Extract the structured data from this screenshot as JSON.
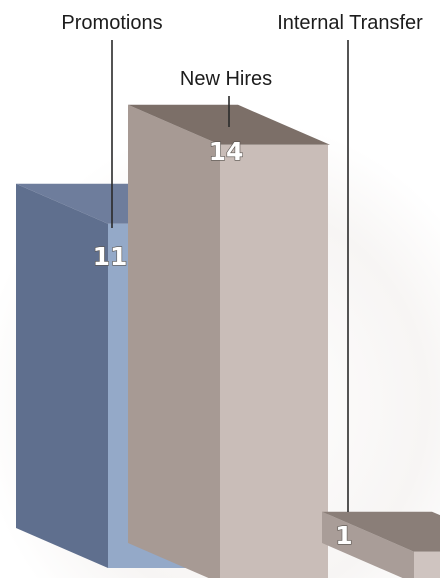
{
  "chart_data": {
    "type": "bar",
    "style": "3d",
    "categories": [
      "Promotions",
      "New Hires",
      "Internal Transfer"
    ],
    "values": [
      11,
      14,
      1
    ],
    "data_labels": [
      "11",
      "14",
      "1"
    ],
    "grid": false,
    "legend": "none",
    "colors": {
      "Promotions": {
        "top": "#6e7d9c",
        "front": "#94a9c8",
        "side": "#5f6f8e"
      },
      "New Hires": {
        "top": "#7c6f68",
        "front": "#c9bdb8",
        "side": "#a79a94"
      },
      "Internal Transfer": {
        "top": "#8a7e78",
        "front": "#cfc4c0",
        "side": "#a99d98"
      }
    }
  }
}
